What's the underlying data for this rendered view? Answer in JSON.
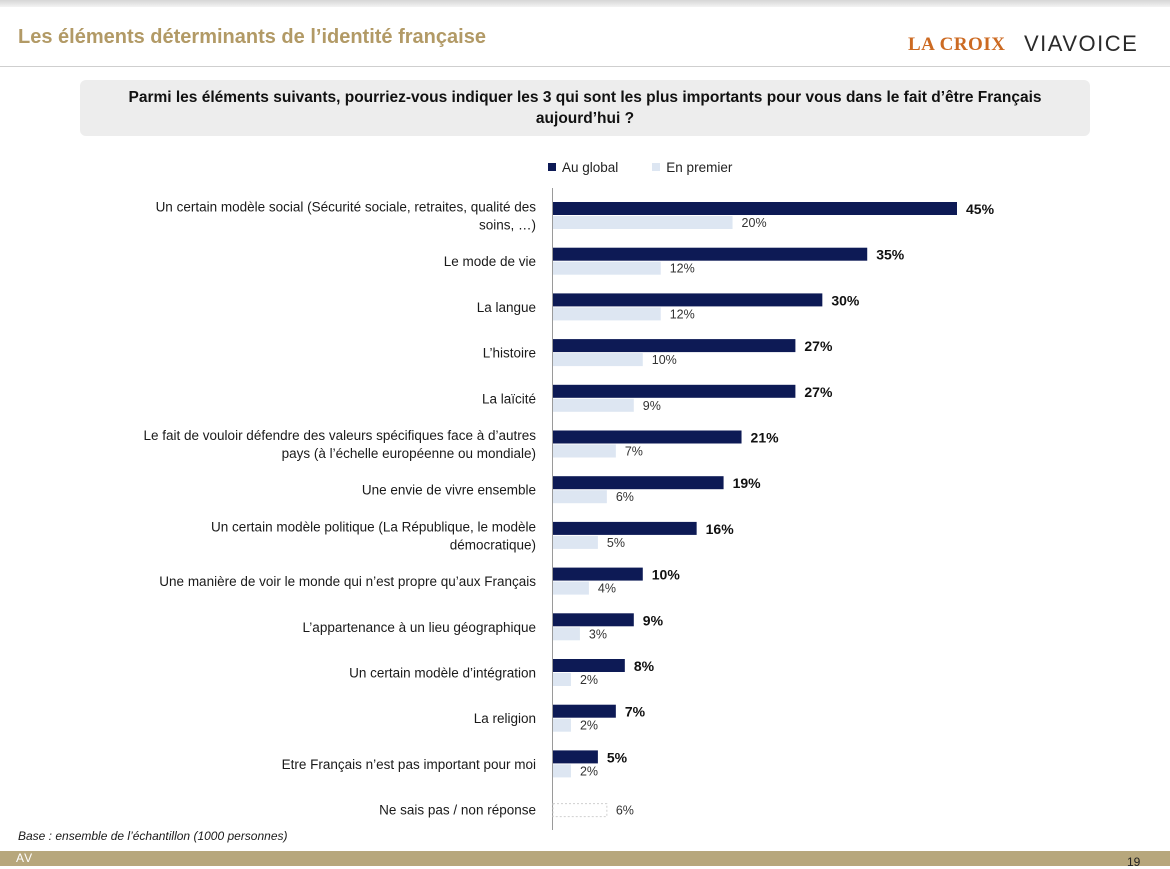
{
  "header": {
    "title": "Les éléments déterminants de l’identité française",
    "logo_lacroix": "LA CROIX",
    "logo_viavoice": "VIAVOICE"
  },
  "question": "Parmi les éléments suivants, pourriez-vous indiquer les 3 qui sont les plus importants pour vous dans le fait d’être Français aujourd’hui ?",
  "legend": {
    "global": "Au global",
    "premier": "En premier"
  },
  "colors": {
    "global": "#0d1a55",
    "premier": "#dde6f2",
    "title": "#b29a66",
    "footer": "#b7a77c",
    "nsp_border": "#cfcfcf"
  },
  "chart_data": {
    "type": "bar",
    "orientation": "horizontal",
    "categories": [
      [
        "Un certain modèle social (Sécurité sociale, retraites, qualité des",
        "soins, …)"
      ],
      [
        "Le mode de vie"
      ],
      [
        "La langue"
      ],
      [
        "L’histoire"
      ],
      [
        "La laïcité"
      ],
      [
        "Le fait de vouloir défendre des valeurs spécifiques face à d’autres",
        "pays (à l’échelle européenne ou mondiale)"
      ],
      [
        "Une envie de vivre ensemble"
      ],
      [
        "Un certain modèle politique (La République, le modèle",
        "démocratique)"
      ],
      [
        "Une manière de voir le monde qui n’est propre qu’aux Français"
      ],
      [
        "L’appartenance à un lieu géographique"
      ],
      [
        "Un certain modèle d’intégration"
      ],
      [
        "La religion"
      ],
      [
        "Etre Français n’est  pas important pour moi"
      ],
      [
        "Ne sais pas / non réponse"
      ]
    ],
    "series": [
      {
        "name": "Au global",
        "values": [
          45,
          35,
          30,
          27,
          27,
          21,
          19,
          16,
          10,
          9,
          8,
          7,
          5,
          null
        ],
        "labels": [
          "45%",
          "35%",
          "30%",
          "27%",
          "27%",
          "21%",
          "19%",
          "16%",
          "10%",
          "9%",
          "8%",
          "7%",
          "5%",
          ""
        ]
      },
      {
        "name": "En premier",
        "values": [
          20,
          12,
          12,
          10,
          9,
          7,
          6,
          5,
          4,
          3,
          2,
          2,
          2,
          6
        ],
        "labels": [
          "20%",
          "12%",
          "12%",
          "10%",
          "9%",
          "7%",
          "6%",
          "5%",
          "4%",
          "3%",
          "2%",
          "2%",
          "2%",
          "6%"
        ]
      }
    ],
    "xlim": [
      0,
      45
    ],
    "grid": false,
    "legend_position": "top"
  },
  "footer": {
    "base_note": "Base : ensemble de l’échantillon (1000 personnes)",
    "logo": "AV",
    "page_number": "19"
  }
}
